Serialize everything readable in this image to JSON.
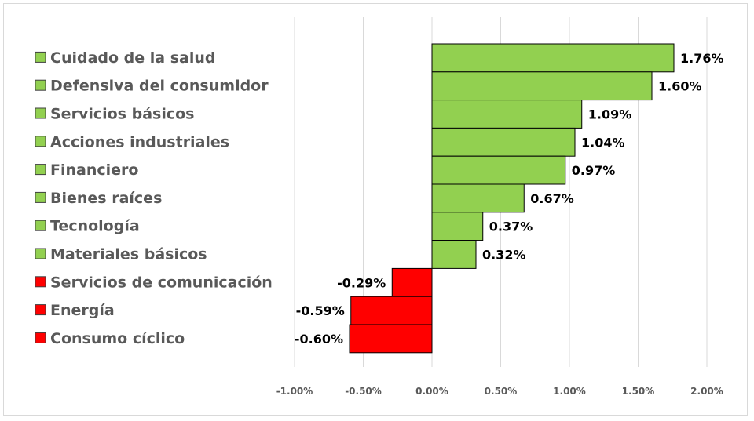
{
  "chart_data": {
    "type": "bar",
    "orientation": "horizontal",
    "categories": [
      "Cuidado de la salud",
      "Defensiva del consumidor",
      "Servicios básicos",
      "Acciones industriales",
      "Financiero",
      "Bienes raíces",
      "Tecnología",
      "Materiales básicos",
      "Servicios de comunicación",
      "Energía",
      "Consumo cíclico"
    ],
    "values": [
      1.76,
      1.6,
      1.09,
      1.04,
      0.97,
      0.67,
      0.37,
      0.32,
      -0.29,
      -0.59,
      -0.6
    ],
    "data_labels": [
      "1.76%",
      "1.60%",
      "1.09%",
      "1.04%",
      "0.97%",
      "0.67%",
      "0.37%",
      "0.32%",
      "-0.29%",
      "-0.59%",
      "-0.60%"
    ],
    "title": "",
    "xlabel": "",
    "ylabel": "",
    "xlim": [
      -1.0,
      2.0
    ],
    "x_ticks": [
      -1.0,
      -0.5,
      0.0,
      0.5,
      1.0,
      1.5,
      2.0
    ],
    "x_tick_labels": [
      "-1.00%",
      "-0.50%",
      "0.00%",
      "0.50%",
      "1.00%",
      "1.50%",
      "2.00%"
    ],
    "grid": "vertical",
    "legend": "left",
    "colors": {
      "positive": "#92d050",
      "negative": "#ff0000",
      "bar_border": "#000000",
      "grid": "#d9d9d9",
      "label_text": "#595959"
    }
  }
}
